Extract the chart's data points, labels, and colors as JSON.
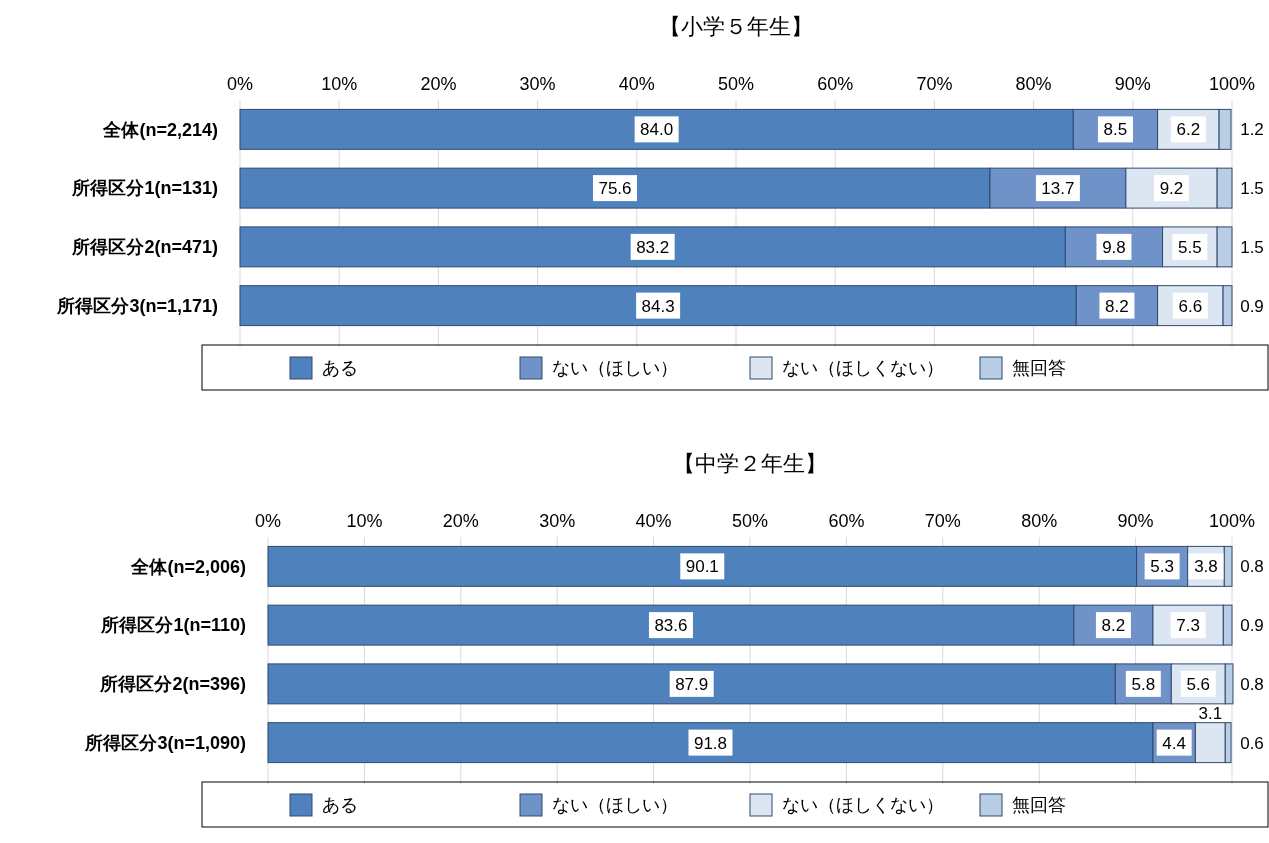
{
  "chart_data": [
    {
      "type": "bar",
      "orientation": "horizontal",
      "stacked": true,
      "title": "【小学５年生】",
      "categories": [
        "全体(n=2,214)",
        "所得区分1(n=131)",
        "所得区分2(n=471)",
        "所得区分3(n=1,171)"
      ],
      "series": [
        {
          "name": "ある",
          "color": "#4f81bd",
          "values": [
            84.0,
            75.6,
            83.2,
            84.3
          ],
          "value_labels": [
            "84.0",
            "75.6",
            "83.2",
            "84.3"
          ]
        },
        {
          "name": "ない（ほしい）",
          "color": "#6f92c8",
          "values": [
            8.5,
            13.7,
            9.8,
            8.2
          ],
          "value_labels": [
            "8.5",
            "13.7",
            "9.8",
            "8.2"
          ]
        },
        {
          "name": "ない（ほしくない）",
          "color": "#dce6f2",
          "values": [
            6.2,
            9.2,
            5.5,
            6.6
          ],
          "value_labels": [
            "6.2",
            "9.2",
            "5.5",
            "6.6"
          ]
        },
        {
          "name": "無回答",
          "color": "#b9cde5",
          "values": [
            1.2,
            1.5,
            1.5,
            0.9
          ],
          "value_labels": [
            "1.2",
            "1.5",
            "1.5",
            "0.9"
          ]
        }
      ],
      "xlim": [
        0,
        100
      ],
      "xticks": [
        {
          "value": 0,
          "label": "0%"
        },
        {
          "value": 10,
          "label": "10%"
        },
        {
          "value": 20,
          "label": "20%"
        },
        {
          "value": 30,
          "label": "30%"
        },
        {
          "value": 40,
          "label": "40%"
        },
        {
          "value": 50,
          "label": "50%"
        },
        {
          "value": 60,
          "label": "60%"
        },
        {
          "value": 70,
          "label": "70%"
        },
        {
          "value": 80,
          "label": "80%"
        },
        {
          "value": 90,
          "label": "90%"
        },
        {
          "value": 100,
          "label": "100%"
        }
      ],
      "grid": "x",
      "legend": "bottom"
    },
    {
      "type": "bar",
      "orientation": "horizontal",
      "stacked": true,
      "title": "【中学２年生】",
      "categories": [
        "全体(n=2,006)",
        "所得区分1(n=110)",
        "所得区分2(n=396)",
        "所得区分3(n=1,090)"
      ],
      "series": [
        {
          "name": "ある",
          "color": "#4f81bd",
          "values": [
            90.1,
            83.6,
            87.9,
            91.8
          ]
        },
        {
          "name": "ない（ほしい）",
          "color": "#6f92c8",
          "values": [
            5.3,
            8.2,
            5.8,
            4.4
          ]
        },
        {
          "name": "ない（ほしくない）",
          "color": "#dce6f2",
          "values": [
            3.8,
            7.3,
            5.6,
            3.1
          ]
        },
        {
          "name": "無回答",
          "color": "#b9cde5",
          "values": [
            0.8,
            0.9,
            0.8,
            0.6
          ]
        }
      ],
      "xlim": [
        0,
        100
      ],
      "xticks": [
        {
          "value": 0,
          "label": "0%"
        },
        {
          "value": 10,
          "label": "10%"
        },
        {
          "value": 20,
          "label": "20%"
        },
        {
          "value": 30,
          "label": "30%"
        },
        {
          "value": 40,
          "label": "40%"
        },
        {
          "value": 50,
          "label": "50%"
        },
        {
          "value": 60,
          "label": "60%"
        },
        {
          "value": 70,
          "label": "70%"
        },
        {
          "value": 80,
          "label": "80%"
        },
        {
          "value": 90,
          "label": "90%"
        },
        {
          "value": 100,
          "label": "100%"
        }
      ],
      "grid": "x",
      "data_labels": true,
      "legend": "bottom"
    }
  ]
}
